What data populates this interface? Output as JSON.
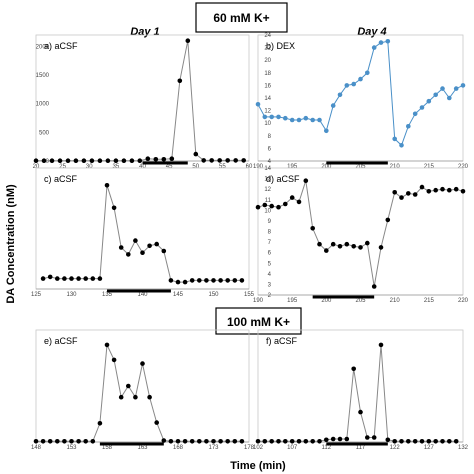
{
  "figure": {
    "conditions": [
      "60 mM K+",
      "100 mM K+"
    ],
    "day_labels": [
      "Day 1",
      "Day 4"
    ],
    "y_axis_title": "DA Concentration (nM)",
    "x_axis_title": "Time (min)"
  },
  "chart_data": [
    {
      "id": "a",
      "type": "line",
      "label": "a) aCSF",
      "color": "#111111",
      "line_color": "#888888",
      "marker": "#000000",
      "xlim": [
        20,
        60
      ],
      "ylim": [
        0,
        2200
      ],
      "xticks": [
        20,
        25,
        30,
        35,
        40,
        45,
        50,
        55,
        60
      ],
      "yticks": [
        0,
        500,
        1000,
        1500,
        2000
      ],
      "stim": [
        40,
        48.5
      ],
      "x": [
        20,
        21.5,
        23,
        24.5,
        26,
        27.5,
        29,
        30.5,
        32,
        33.5,
        35,
        36.5,
        38,
        39.5,
        41,
        42.5,
        44,
        45.5,
        47,
        48.5,
        50,
        51.5,
        53,
        54.5,
        56,
        57.5,
        59
      ],
      "y": [
        5,
        5,
        5,
        5,
        5,
        5,
        5,
        5,
        5,
        5,
        5,
        5,
        5,
        5,
        40,
        30,
        30,
        40,
        1400,
        2100,
        120,
        10,
        10,
        10,
        10,
        10,
        10
      ]
    },
    {
      "id": "b",
      "type": "line",
      "label": "b) DEX",
      "color": "#4a90c8",
      "line_color": "#4a90c8",
      "marker": "#4a90c8",
      "xlim": [
        190,
        220
      ],
      "ylim": [
        4,
        24
      ],
      "xticks": [
        190,
        195,
        200,
        205,
        210,
        215,
        220
      ],
      "yticks": [
        4,
        6,
        8,
        10,
        12,
        14,
        16,
        18,
        20,
        22,
        24
      ],
      "stim": [
        200,
        209
      ],
      "x": [
        190,
        191,
        192,
        193,
        194,
        195,
        196,
        197,
        198,
        199,
        200,
        201,
        202,
        203,
        204,
        205,
        206,
        207,
        208,
        209,
        210,
        211,
        212,
        213,
        214,
        215,
        216,
        217,
        218,
        219,
        220
      ],
      "y": [
        13,
        11,
        11,
        11,
        10.8,
        10.5,
        10.5,
        10.8,
        10.5,
        10.5,
        8.8,
        12.8,
        14.5,
        16,
        16.2,
        17,
        18,
        22,
        22.8,
        23,
        7.5,
        6.5,
        9.5,
        11.5,
        12.5,
        13.5,
        14.5,
        15.5,
        14,
        15.5,
        16
      ]
    },
    {
      "id": "c",
      "type": "line",
      "label": "c) aCSF",
      "color": "#111111",
      "line_color": "#888888",
      "marker": "#000000",
      "xlim": [
        125,
        155
      ],
      "ylim": [
        0,
        70
      ],
      "xticks": [
        125,
        130,
        135,
        140,
        145,
        150,
        155
      ],
      "yticks": [],
      "stim": [
        135,
        144
      ],
      "x": [
        126,
        127,
        128,
        129,
        130,
        131,
        132,
        133,
        134,
        135,
        136,
        137,
        138,
        139,
        140,
        141,
        142,
        143,
        144,
        145,
        146,
        147,
        148,
        149,
        150,
        151,
        152,
        153,
        154
      ],
      "y": [
        6,
        7,
        6,
        6,
        6,
        6,
        6,
        6,
        6,
        60,
        47,
        24,
        20,
        28,
        21,
        25,
        26,
        22,
        5,
        4,
        4,
        5,
        5,
        5,
        5,
        5,
        5,
        5,
        5
      ]
    },
    {
      "id": "d",
      "type": "line",
      "label": "d) aCSF",
      "color": "#111111",
      "line_color": "#888888",
      "marker": "#000000",
      "xlim": [
        190,
        220
      ],
      "ylim": [
        2,
        14
      ],
      "xticks": [
        190,
        195,
        200,
        205,
        210,
        215,
        220
      ],
      "yticks": [
        2,
        3,
        4,
        5,
        6,
        7,
        8,
        9,
        10,
        11,
        12,
        13,
        14
      ],
      "stim": [
        198,
        207
      ],
      "x": [
        190,
        191,
        192,
        193,
        194,
        195,
        196,
        197,
        198,
        199,
        200,
        201,
        202,
        203,
        204,
        205,
        206,
        207,
        208,
        209,
        210,
        211,
        212,
        213,
        214,
        215,
        216,
        217,
        218,
        219,
        220
      ],
      "y": [
        10.3,
        10.5,
        10.4,
        10.3,
        10.6,
        11.2,
        10.8,
        12.8,
        8.3,
        6.8,
        6.2,
        6.8,
        6.6,
        6.8,
        6.6,
        6.5,
        6.9,
        2.8,
        6.5,
        9.1,
        11.7,
        11.2,
        11.6,
        11.5,
        12.2,
        11.8,
        11.9,
        12.0,
        11.9,
        12.0,
        11.8
      ]
    },
    {
      "id": "e",
      "type": "line",
      "label": "e) aCSF",
      "color": "#111111",
      "line_color": "#888888",
      "marker": "#000000",
      "xlim": [
        148,
        178
      ],
      "ylim": [
        0,
        1500
      ],
      "xticks": [
        148,
        153,
        158,
        163,
        168,
        173,
        178
      ],
      "yticks": [],
      "stim": [
        157,
        166
      ],
      "x": [
        148,
        149,
        150,
        151,
        152,
        153,
        154,
        155,
        156,
        157,
        158,
        159,
        160,
        161,
        162,
        163,
        164,
        165,
        166,
        167,
        168,
        169,
        170,
        171,
        172,
        173,
        174,
        175,
        176,
        177
      ],
      "y": [
        10,
        10,
        10,
        10,
        10,
        10,
        10,
        10,
        10,
        250,
        1300,
        1100,
        600,
        750,
        600,
        1050,
        600,
        260,
        20,
        10,
        10,
        10,
        10,
        10,
        10,
        10,
        10,
        10,
        10,
        10
      ]
    },
    {
      "id": "f",
      "type": "line",
      "label": "f) aCSF",
      "color": "#111111",
      "line_color": "#888888",
      "marker": "#000000",
      "xlim": [
        102,
        132
      ],
      "ylim": [
        0,
        1500
      ],
      "xticks": [
        102,
        107,
        112,
        117,
        122,
        127,
        132
      ],
      "yticks": [],
      "stim": [
        112,
        121
      ],
      "x": [
        102,
        103,
        104,
        105,
        106,
        107,
        108,
        109,
        110,
        111,
        112,
        113,
        114,
        115,
        116,
        117,
        118,
        119,
        120,
        121,
        122,
        123,
        124,
        125,
        126,
        127,
        128,
        129,
        130,
        131
      ],
      "y": [
        10,
        10,
        10,
        10,
        10,
        10,
        10,
        10,
        10,
        10,
        30,
        40,
        40,
        40,
        980,
        400,
        60,
        60,
        1300,
        30,
        10,
        10,
        10,
        10,
        10,
        10,
        10,
        10,
        10,
        10
      ]
    }
  ]
}
